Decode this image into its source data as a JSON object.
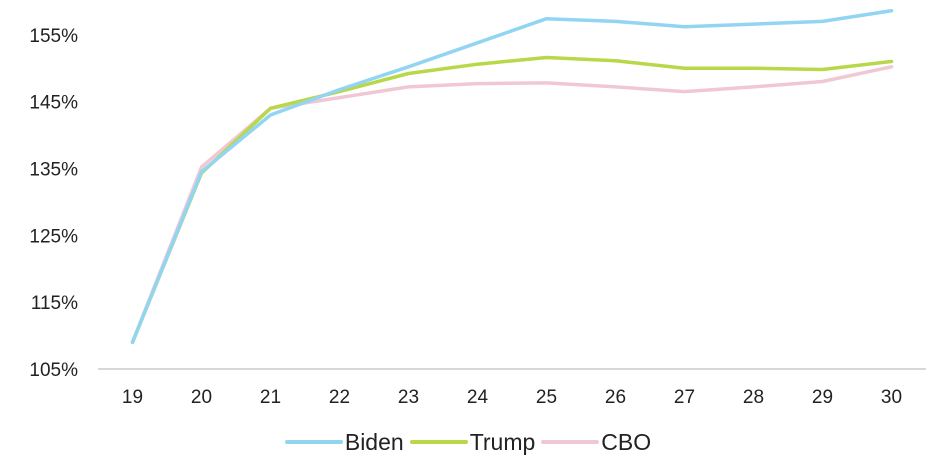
{
  "chart_data": {
    "type": "line",
    "categories": [
      "19",
      "20",
      "21",
      "22",
      "23",
      "24",
      "25",
      "26",
      "27",
      "28",
      "29",
      "30"
    ],
    "ylim": [
      105,
      155
    ],
    "yticks": [
      "105%",
      "115%",
      "125%",
      "135%",
      "145%",
      "155%"
    ],
    "ytick_values": [
      105,
      115,
      125,
      135,
      145,
      155
    ],
    "grid": false,
    "legend_position": "bottom",
    "series": [
      {
        "name": "Biden",
        "color": "#91d5f2",
        "values": [
          109.0,
          134.5,
          143.0,
          146.8,
          150.2,
          153.8,
          157.4,
          157.0,
          156.2,
          156.6,
          157.0,
          158.6
        ]
      },
      {
        "name": "Trump",
        "color": "#b8d84a",
        "values": [
          109.0,
          134.3,
          144.0,
          146.5,
          149.2,
          150.6,
          151.6,
          151.1,
          150.0,
          150.0,
          149.8,
          151.0
        ]
      },
      {
        "name": "CBO",
        "color": "#f0c8d4",
        "values": [
          109.0,
          135.2,
          144.0,
          145.6,
          147.2,
          147.7,
          147.8,
          147.2,
          146.5,
          147.2,
          148.0,
          150.2
        ]
      }
    ]
  }
}
